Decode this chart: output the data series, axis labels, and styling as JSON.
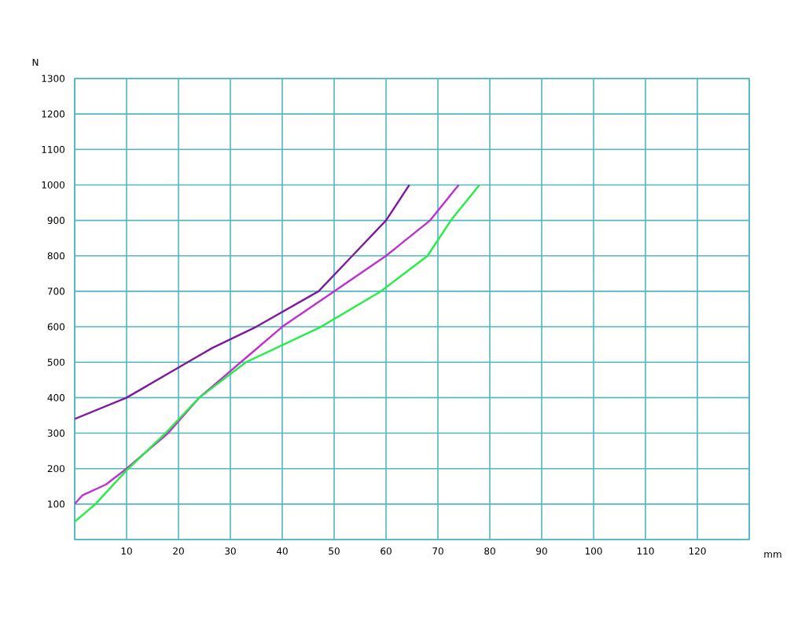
{
  "chart_data": {
    "type": "line",
    "xlabel": "mm",
    "ylabel": "N",
    "xlim": [
      0,
      130
    ],
    "ylim": [
      0,
      1300
    ],
    "xticks": [
      {
        "value": 0,
        "label": null
      },
      10,
      20,
      30,
      40,
      50,
      60,
      70,
      80,
      90,
      100,
      110,
      120,
      {
        "value": 130,
        "label": null
      }
    ],
    "yticks": [
      {
        "value": 0,
        "label": null
      },
      100,
      200,
      300,
      400,
      500,
      600,
      700,
      800,
      900,
      1000,
      1100,
      1200,
      1300
    ],
    "grid": true,
    "series": [
      {
        "color": "#7e1a9e",
        "x": [
          0,
          10,
          20,
          26.5,
          35,
          47,
          53.5,
          60,
          64.5
        ],
        "values": [
          340,
          400,
          485,
          540,
          600,
          700,
          800,
          900,
          1000
        ]
      },
      {
        "color": "#c02fd0",
        "x": [
          0,
          1.5,
          6,
          10,
          18,
          24,
          28,
          32,
          40,
          50,
          60,
          68.5,
          74
        ],
        "values": [
          100,
          125,
          155,
          200,
          300,
          400,
          450,
          500,
          600,
          700,
          800,
          900,
          1000
        ]
      },
      {
        "color": "#22ee44",
        "x": [
          0,
          4,
          10,
          17.5,
          24,
          33,
          47.5,
          59,
          68,
          72.5,
          78
        ],
        "values": [
          50,
          100,
          195,
          300,
          400,
          500,
          600,
          700,
          800,
          900,
          1000
        ]
      }
    ]
  }
}
